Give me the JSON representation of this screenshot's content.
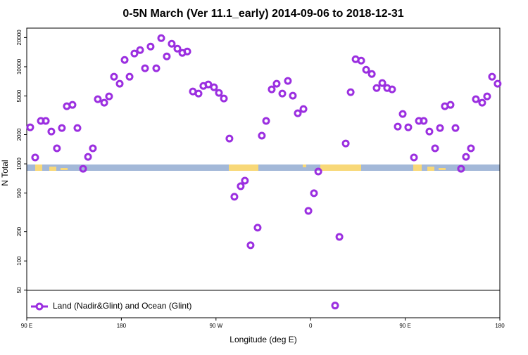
{
  "chart_data": {
    "type": "scatter",
    "title": "0-5N March (Ver 11.1_early)   2014-09-06 to 2018-12-31",
    "x_label": "Longitude (deg E)",
    "y_label": "N Total",
    "xlim": [
      90,
      540
    ],
    "ylim": [
      26,
      25000
    ],
    "ylog": true,
    "legend": "bottom-left",
    "xticks": [
      {
        "value": 90,
        "label": "90 E"
      },
      180,
      {
        "value": 270,
        "label": "90 W"
      },
      {
        "value": 360,
        "label": "0"
      },
      {
        "value": 450,
        "label": "90 E"
      },
      {
        "value": 540,
        "label": "180"
      }
    ],
    "yticks": [
      50,
      100,
      200,
      500,
      1000,
      2000,
      5000,
      10000,
      20000
    ],
    "series": [
      {
        "name": "Land (Nadir&Glint) and Ocean (Glint)",
        "color": "#9b2fe0",
        "x": [
          93.3,
          98.0,
          103.4,
          108.1,
          113.4,
          118.7,
          123.4,
          128.1,
          133.5,
          138.2,
          143.6,
          148.3,
          152.9,
          157.6,
          163.7,
          168.3,
          173.0,
          178.4,
          183.1,
          187.8,
          192.4,
          197.8,
          202.5,
          207.8,
          213.2,
          217.9,
          223.2,
          227.9,
          233.3,
          238.0,
          242.7,
          248.0,
          253.4,
          258.0,
          262.7,
          268.1,
          272.8,
          277.5,
          282.8,
          287.5,
          293.5,
          297.5,
          302.9,
          309.6,
          313.6,
          317.7,
          323.0,
          327.7,
          333.1,
          338.4,
          343.1,
          347.8,
          353.2,
          357.9,
          363.2,
          367.3,
          383.3,
          387.4,
          393.4,
          398.1,
          402.8,
          408.1,
          412.8,
          418.2,
          422.8,
          428.2,
          432.8,
          437.5,
          442.9,
          447.6,
          452.9,
          458.3,
          463.0,
          467.6,
          473.0,
          478.4,
          483.1,
          487.7,
          493.1,
          497.8,
          503.1,
          507.8,
          512.5,
          517.2,
          523.2,
          527.9,
          532.6,
          537.9
        ],
        "values": [
          2380,
          1164,
          2770,
          2770,
          2150,
          1445,
          2340,
          3920,
          4050,
          2340,
          890,
          1180,
          1445,
          4630,
          4260,
          4950,
          7890,
          6680,
          11750,
          7890,
          13700,
          14860,
          9640,
          16140,
          9640,
          19700,
          12790,
          17260,
          15350,
          13900,
          14360,
          5560,
          5290,
          6350,
          6570,
          6150,
          5380,
          4710,
          1820,
          458,
          588,
          671,
          145,
          220,
          1950,
          2770,
          5850,
          6680,
          5290,
          7140,
          5035,
          3320,
          3670,
          328,
          498,
          834,
          34.7,
          177,
          1622,
          5470,
          11960,
          11560,
          9310,
          8430,
          6040,
          6790,
          6040,
          5850,
          2420,
          3265,
          2380,
          1164,
          2770,
          2770,
          2150,
          1445,
          2340,
          3920,
          4050,
          2340,
          890,
          1180,
          1445,
          4630,
          4260,
          4950,
          7890,
          6680
        ]
      }
    ]
  }
}
